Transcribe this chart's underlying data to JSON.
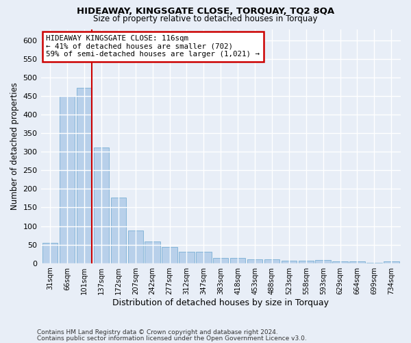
{
  "title1": "HIDEAWAY, KINGSGATE CLOSE, TORQUAY, TQ2 8QA",
  "title2": "Size of property relative to detached houses in Torquay",
  "xlabel": "Distribution of detached houses by size in Torquay",
  "ylabel": "Number of detached properties",
  "footnote1": "Contains HM Land Registry data © Crown copyright and database right 2024.",
  "footnote2": "Contains public sector information licensed under the Open Government Licence v3.0.",
  "categories": [
    "31sqm",
    "66sqm",
    "101sqm",
    "137sqm",
    "172sqm",
    "207sqm",
    "242sqm",
    "277sqm",
    "312sqm",
    "347sqm",
    "383sqm",
    "418sqm",
    "453sqm",
    "488sqm",
    "523sqm",
    "558sqm",
    "593sqm",
    "629sqm",
    "664sqm",
    "699sqm",
    "734sqm"
  ],
  "values": [
    55,
    450,
    472,
    311,
    176,
    88,
    58,
    43,
    30,
    31,
    15,
    15,
    10,
    10,
    6,
    6,
    9,
    5,
    5,
    2,
    5
  ],
  "bar_color": "#b8d0ea",
  "bar_edge_color": "#7aafd4",
  "subject_bar_index": 2,
  "subject_line_color": "#cc0000",
  "annotation_text": "HIDEAWAY KINGSGATE CLOSE: 116sqm\n← 41% of detached houses are smaller (702)\n59% of semi-detached houses are larger (1,021) →",
  "annotation_box_color": "#cc0000",
  "ylim": [
    0,
    630
  ],
  "yticks": [
    0,
    50,
    100,
    150,
    200,
    250,
    300,
    350,
    400,
    450,
    500,
    550,
    600
  ],
  "background_color": "#e8eef7",
  "plot_bg_color": "#e8eef7",
  "grid_color": "#ffffff"
}
